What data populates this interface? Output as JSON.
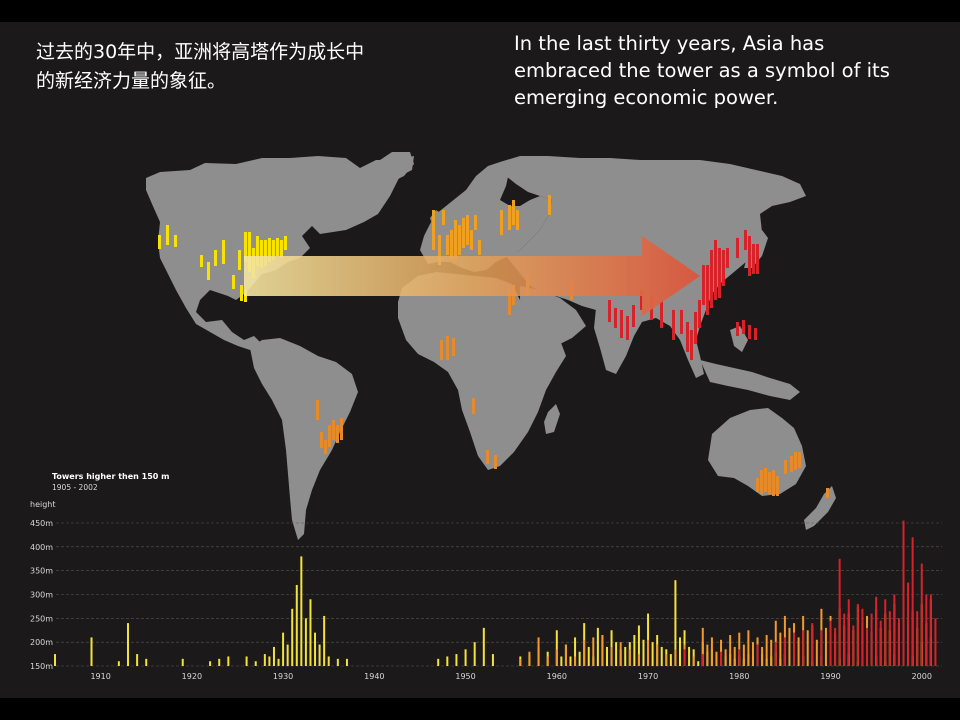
{
  "text": {
    "zh_lines": [
      "过去的30年中，亚洲将高塔作为成长中",
      "的新经济力量的象征。"
    ],
    "en_lines": [
      "In the last thirty years, Asia has",
      "embraced the tower as a symbol of its",
      "emerging economic power."
    ]
  },
  "colors": {
    "background": "#1b1919",
    "land": "#8e8e8e",
    "north_america": "#f7e200",
    "europe": "#f0a020",
    "africa_south_america": "#e68a2a",
    "asia": "#d8222a",
    "chart_yellow": "#f3e23a",
    "chart_orange": "#f39a2a",
    "chart_red": "#d8222a"
  },
  "chart_data": {
    "type": "bar",
    "title": "Towers higher then 150 m",
    "subtitle": "1905 - 2002",
    "ylabel": "height",
    "ylim": [
      150,
      450
    ],
    "y_ticks": [
      "450m",
      "400m",
      "350m",
      "300m",
      "250m",
      "200m",
      "150m"
    ],
    "x_ticks": [
      "1910",
      "1920",
      "1930",
      "1940",
      "1950",
      "1960",
      "1970",
      "1980",
      "1990",
      "2000"
    ],
    "xlim": [
      1905,
      2002
    ],
    "series": [
      {
        "color": "yellow",
        "points": [
          [
            1905,
            175
          ],
          [
            1909,
            210
          ],
          [
            1912,
            160
          ],
          [
            1913,
            240
          ],
          [
            1914,
            175
          ],
          [
            1915,
            165
          ],
          [
            1919,
            165
          ],
          [
            1922,
            160
          ],
          [
            1923,
            165
          ],
          [
            1924,
            170
          ],
          [
            1926,
            170
          ],
          [
            1927,
            160
          ],
          [
            1928,
            175
          ],
          [
            1928.5,
            170
          ],
          [
            1929,
            190
          ],
          [
            1929.5,
            165
          ],
          [
            1930,
            220
          ],
          [
            1930.5,
            195
          ],
          [
            1931,
            270
          ],
          [
            1931.5,
            320
          ],
          [
            1932,
            380
          ],
          [
            1932.5,
            250
          ],
          [
            1933,
            290
          ],
          [
            1933.5,
            220
          ],
          [
            1934,
            195
          ],
          [
            1934.5,
            255
          ],
          [
            1935,
            170
          ],
          [
            1936,
            165
          ],
          [
            1937,
            165
          ],
          [
            1947,
            165
          ],
          [
            1948,
            170
          ],
          [
            1949,
            175
          ],
          [
            1950,
            185
          ],
          [
            1951,
            200
          ],
          [
            1952,
            230
          ],
          [
            1953,
            175
          ],
          [
            1956,
            170
          ],
          [
            1957,
            175
          ],
          [
            1958,
            190
          ],
          [
            1959,
            180
          ],
          [
            1960,
            225
          ],
          [
            1960.5,
            170
          ],
          [
            1961,
            195
          ],
          [
            1961.5,
            170
          ],
          [
            1962,
            210
          ],
          [
            1962.5,
            180
          ],
          [
            1963,
            240
          ],
          [
            1963.5,
            190
          ],
          [
            1964,
            170
          ],
          [
            1964.5,
            230
          ],
          [
            1965,
            215
          ],
          [
            1965.5,
            190
          ],
          [
            1966,
            225
          ],
          [
            1966.5,
            200
          ],
          [
            1967,
            185
          ],
          [
            1967.5,
            190
          ],
          [
            1968,
            200
          ],
          [
            1968.5,
            215
          ],
          [
            1969,
            235
          ],
          [
            1969.5,
            205
          ],
          [
            1970,
            260
          ],
          [
            1970.5,
            200
          ],
          [
            1971,
            215
          ],
          [
            1971.5,
            190
          ],
          [
            1972,
            185
          ],
          [
            1972.5,
            175
          ],
          [
            1973,
            330
          ],
          [
            1973.5,
            210
          ],
          [
            1974,
            225
          ],
          [
            1974.5,
            190
          ],
          [
            1975,
            185
          ],
          [
            1975.5,
            160
          ],
          [
            1976,
            200
          ],
          [
            1976.5,
            180
          ],
          [
            1977,
            185
          ],
          [
            1977.5,
            175
          ],
          [
            1978,
            190
          ],
          [
            1978.5,
            170
          ],
          [
            1979,
            175
          ],
          [
            1979.5,
            165
          ],
          [
            1980,
            170
          ],
          [
            1980.5,
            165
          ],
          [
            1981,
            175
          ],
          [
            1981.5,
            170
          ],
          [
            1982,
            205
          ],
          [
            1982.5,
            175
          ],
          [
            1983,
            165
          ],
          [
            1983.5,
            170
          ],
          [
            1984,
            180
          ],
          [
            1984.5,
            165
          ],
          [
            1985,
            175
          ],
          [
            1986,
            180
          ],
          [
            1987,
            170
          ],
          [
            1988,
            160
          ],
          [
            1989,
            170
          ],
          [
            1990,
            160
          ],
          [
            1991,
            165
          ],
          [
            1992,
            175
          ],
          [
            1993,
            160
          ],
          [
            1994,
            165
          ],
          [
            1995,
            170
          ],
          [
            1996,
            160
          ],
          [
            1997,
            175
          ],
          [
            1998,
            165
          ],
          [
            1999,
            170
          ],
          [
            2000,
            200
          ],
          [
            2001,
            210
          ]
        ]
      },
      {
        "color": "orange",
        "points": [
          [
            1956,
            165
          ],
          [
            1957,
            180
          ],
          [
            1958,
            210
          ],
          [
            1959,
            170
          ],
          [
            1960,
            185
          ],
          [
            1961,
            195
          ],
          [
            1962,
            170
          ],
          [
            1963,
            205
          ],
          [
            1964,
            210
          ],
          [
            1965,
            215
          ],
          [
            1966,
            190
          ],
          [
            1967,
            200
          ],
          [
            1968,
            185
          ],
          [
            1969,
            175
          ],
          [
            1970,
            205
          ],
          [
            1971,
            195
          ],
          [
            1972,
            175
          ],
          [
            1973,
            185
          ],
          [
            1974,
            195
          ],
          [
            1975,
            170
          ],
          [
            1976,
            230
          ],
          [
            1976.5,
            195
          ],
          [
            1977,
            210
          ],
          [
            1977.5,
            180
          ],
          [
            1978,
            205
          ],
          [
            1978.5,
            185
          ],
          [
            1979,
            215
          ],
          [
            1979.5,
            190
          ],
          [
            1980,
            220
          ],
          [
            1980.5,
            195
          ],
          [
            1981,
            225
          ],
          [
            1981.5,
            200
          ],
          [
            1982,
            210
          ],
          [
            1982.5,
            190
          ],
          [
            1983,
            215
          ],
          [
            1983.5,
            205
          ],
          [
            1984,
            245
          ],
          [
            1984.5,
            220
          ],
          [
            1985,
            255
          ],
          [
            1985.5,
            230
          ],
          [
            1986,
            240
          ],
          [
            1986.5,
            210
          ],
          [
            1987,
            255
          ],
          [
            1987.5,
            225
          ],
          [
            1988,
            235
          ],
          [
            1988.5,
            205
          ],
          [
            1989,
            270
          ],
          [
            1989.5,
            230
          ],
          [
            1990,
            255
          ],
          [
            1990.5,
            220
          ],
          [
            1991,
            270
          ],
          [
            1991.5,
            235
          ],
          [
            1992,
            260
          ],
          [
            1992.5,
            225
          ],
          [
            1993,
            275
          ],
          [
            1993.5,
            240
          ],
          [
            1994,
            255
          ],
          [
            1994.5,
            220
          ],
          [
            1995,
            270
          ],
          [
            1995.5,
            230
          ],
          [
            1996,
            260
          ],
          [
            1996.5,
            225
          ],
          [
            1997,
            280
          ],
          [
            1997.5,
            240
          ],
          [
            1998,
            295
          ],
          [
            1998.5,
            245
          ],
          [
            1999,
            265
          ],
          [
            1999.5,
            230
          ],
          [
            2000,
            280
          ],
          [
            2000.5,
            240
          ],
          [
            2001,
            290
          ]
        ]
      },
      {
        "color": "red",
        "points": [
          [
            1974,
            185
          ],
          [
            1976,
            175
          ],
          [
            1978,
            180
          ],
          [
            1980,
            185
          ],
          [
            1982,
            195
          ],
          [
            1984,
            200
          ],
          [
            1985,
            210
          ],
          [
            1986,
            220
          ],
          [
            1987,
            225
          ],
          [
            1988,
            240
          ],
          [
            1989,
            225
          ],
          [
            1990,
            245
          ],
          [
            1990.5,
            230
          ],
          [
            1991,
            375
          ],
          [
            1991.5,
            260
          ],
          [
            1992,
            290
          ],
          [
            1992.5,
            235
          ],
          [
            1993,
            280
          ],
          [
            1993.5,
            270
          ],
          [
            1994,
            230
          ],
          [
            1994.5,
            260
          ],
          [
            1995,
            295
          ],
          [
            1995.5,
            245
          ],
          [
            1996,
            290
          ],
          [
            1996.5,
            265
          ],
          [
            1997,
            300
          ],
          [
            1997.5,
            250
          ],
          [
            1998,
            455
          ],
          [
            1998.5,
            325
          ],
          [
            1999,
            420
          ],
          [
            1999.5,
            265
          ],
          [
            2000,
            365
          ],
          [
            2000.5,
            300
          ],
          [
            2001,
            300
          ],
          [
            2001.5,
            250
          ]
        ]
      }
    ],
    "grid": true
  },
  "map": {
    "north_america_towers": [
      [
        158,
        235,
        14
      ],
      [
        166,
        225,
        20
      ],
      [
        174,
        235,
        12
      ],
      [
        200,
        255,
        12
      ],
      [
        207,
        262,
        18
      ],
      [
        214,
        250,
        16
      ],
      [
        222,
        240,
        24
      ],
      [
        232,
        275,
        14
      ],
      [
        238,
        250,
        20
      ],
      [
        244,
        232,
        30
      ],
      [
        248,
        232,
        40
      ],
      [
        252,
        248,
        30
      ],
      [
        256,
        236,
        30
      ],
      [
        260,
        240,
        28
      ],
      [
        264,
        240,
        26
      ],
      [
        268,
        238,
        24
      ],
      [
        272,
        240,
        20
      ],
      [
        276,
        238,
        18
      ],
      [
        280,
        240,
        18
      ],
      [
        284,
        236,
        14
      ],
      [
        240,
        285,
        16
      ],
      [
        244,
        290,
        12
      ]
    ],
    "europe_towers": [
      [
        432,
        210,
        40
      ],
      [
        438,
        235,
        30
      ],
      [
        442,
        210,
        15
      ],
      [
        446,
        235,
        20
      ],
      [
        450,
        230,
        30
      ],
      [
        454,
        220,
        40
      ],
      [
        458,
        225,
        30
      ],
      [
        462,
        218,
        30
      ],
      [
        466,
        215,
        30
      ],
      [
        470,
        230,
        20
      ],
      [
        474,
        215,
        15
      ],
      [
        478,
        240,
        15
      ],
      [
        500,
        210,
        25
      ],
      [
        508,
        205,
        25
      ],
      [
        512,
        200,
        25
      ],
      [
        516,
        210,
        20
      ],
      [
        548,
        195,
        20
      ]
    ],
    "africa_towers": [
      [
        440,
        340,
        20
      ],
      [
        446,
        336,
        24
      ],
      [
        452,
        338,
        18
      ],
      [
        472,
        398,
        16
      ],
      [
        486,
        450,
        14
      ],
      [
        494,
        455,
        14
      ]
    ],
    "south_america_towers": [
      [
        316,
        400,
        20
      ],
      [
        320,
        432,
        16
      ],
      [
        324,
        440,
        14
      ],
      [
        328,
        425,
        22
      ],
      [
        332,
        420,
        20
      ],
      [
        336,
        425,
        18
      ],
      [
        340,
        418,
        22
      ]
    ],
    "middle_east_towers": [
      [
        508,
        290,
        25
      ],
      [
        512,
        285,
        20
      ],
      [
        526,
        276,
        20
      ],
      [
        570,
        280,
        20
      ]
    ],
    "asia_towers": [
      [
        608,
        300,
        22
      ],
      [
        614,
        308,
        20
      ],
      [
        620,
        310,
        28
      ],
      [
        626,
        316,
        24
      ],
      [
        632,
        305,
        22
      ],
      [
        640,
        290,
        20
      ],
      [
        650,
        296,
        24
      ],
      [
        660,
        300,
        28
      ],
      [
        672,
        310,
        30
      ],
      [
        680,
        310,
        24
      ],
      [
        686,
        322,
        30
      ],
      [
        690,
        330,
        30
      ],
      [
        694,
        312,
        32
      ],
      [
        698,
        300,
        28
      ],
      [
        702,
        265,
        40
      ],
      [
        706,
        265,
        50
      ],
      [
        710,
        250,
        58
      ],
      [
        714,
        240,
        60
      ],
      [
        718,
        248,
        50
      ],
      [
        722,
        250,
        36
      ],
      [
        726,
        248,
        20
      ],
      [
        736,
        238,
        20
      ],
      [
        744,
        230,
        20
      ],
      [
        748,
        236,
        40
      ],
      [
        752,
        244,
        30
      ],
      [
        756,
        244,
        30
      ],
      [
        736,
        322,
        14
      ],
      [
        742,
        320,
        14
      ],
      [
        748,
        325,
        14
      ],
      [
        754,
        328,
        12
      ]
    ],
    "australia_towers": [
      [
        756,
        478,
        14
      ],
      [
        760,
        470,
        24
      ],
      [
        764,
        468,
        24
      ],
      [
        768,
        472,
        22
      ],
      [
        772,
        470,
        26
      ],
      [
        776,
        476,
        20
      ],
      [
        784,
        460,
        14
      ],
      [
        790,
        456,
        16
      ],
      [
        794,
        452,
        18
      ],
      [
        798,
        452,
        16
      ],
      [
        826,
        488,
        10
      ]
    ]
  }
}
